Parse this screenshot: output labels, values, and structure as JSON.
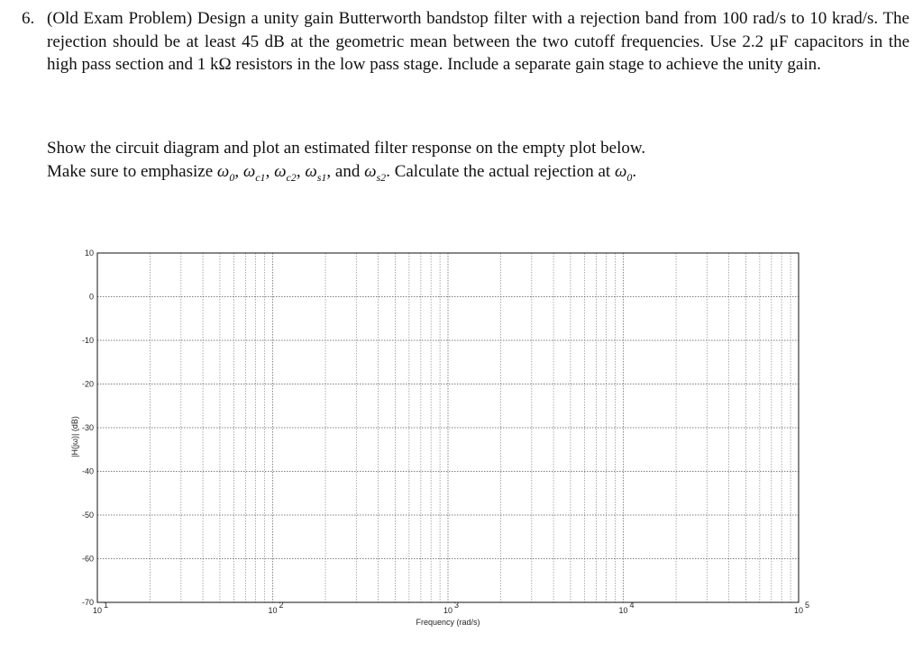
{
  "problem": {
    "number": "6.",
    "text": "(Old Exam Problem) Design a unity gain Butterworth bandstop filter with a rejection band from 100 rad/s to 10 krad/s. The rejection should be at least 45 dB at the geometric mean between the two cutoff frequencies. Use 2.2 μF capacitors in the high pass section and 1 kΩ resistors in the low pass stage. Include a separate gain stage to achieve the unity gain."
  },
  "instructions": {
    "line1": "Show the circuit diagram and plot an estimated filter response on the empty plot below.",
    "line2_prefix": "Make sure to emphasize ",
    "line2_and": "and",
    "line2_calc": ". Calculate the actual rejection at",
    "line2_end": ".",
    "symbols": {
      "w0": "ω",
      "w0_sub": "0",
      "wc1": "ω",
      "wc1_sub": "c1",
      "wc2": "ω",
      "wc2_sub": "c2",
      "ws1": "ω",
      "ws1_sub": "s1",
      "ws2": "ω",
      "ws2_sub": "s2"
    }
  },
  "chart_data": {
    "type": "line",
    "xlabel": "Frequency (rad/s)",
    "ylabel": "|H(jω)| (dB)",
    "x_scale": "log",
    "xlim": [
      10,
      100000
    ],
    "ylim": [
      -70,
      10
    ],
    "x_ticks": [
      10,
      100,
      1000,
      10000,
      100000
    ],
    "x_tick_labels": [
      {
        "base": "10",
        "exp": "1"
      },
      {
        "base": "10",
        "exp": "2"
      },
      {
        "base": "10",
        "exp": "3"
      },
      {
        "base": "10",
        "exp": "4"
      },
      {
        "base": "10",
        "exp": "5"
      }
    ],
    "y_ticks": [
      10,
      0,
      -10,
      -20,
      -30,
      -40,
      -50,
      -60,
      -70
    ],
    "y_tick_labels": [
      "10",
      "0",
      "-10",
      "-20",
      "-30",
      "-40",
      "-50",
      "-60",
      "-70"
    ],
    "grid": true,
    "series": []
  }
}
